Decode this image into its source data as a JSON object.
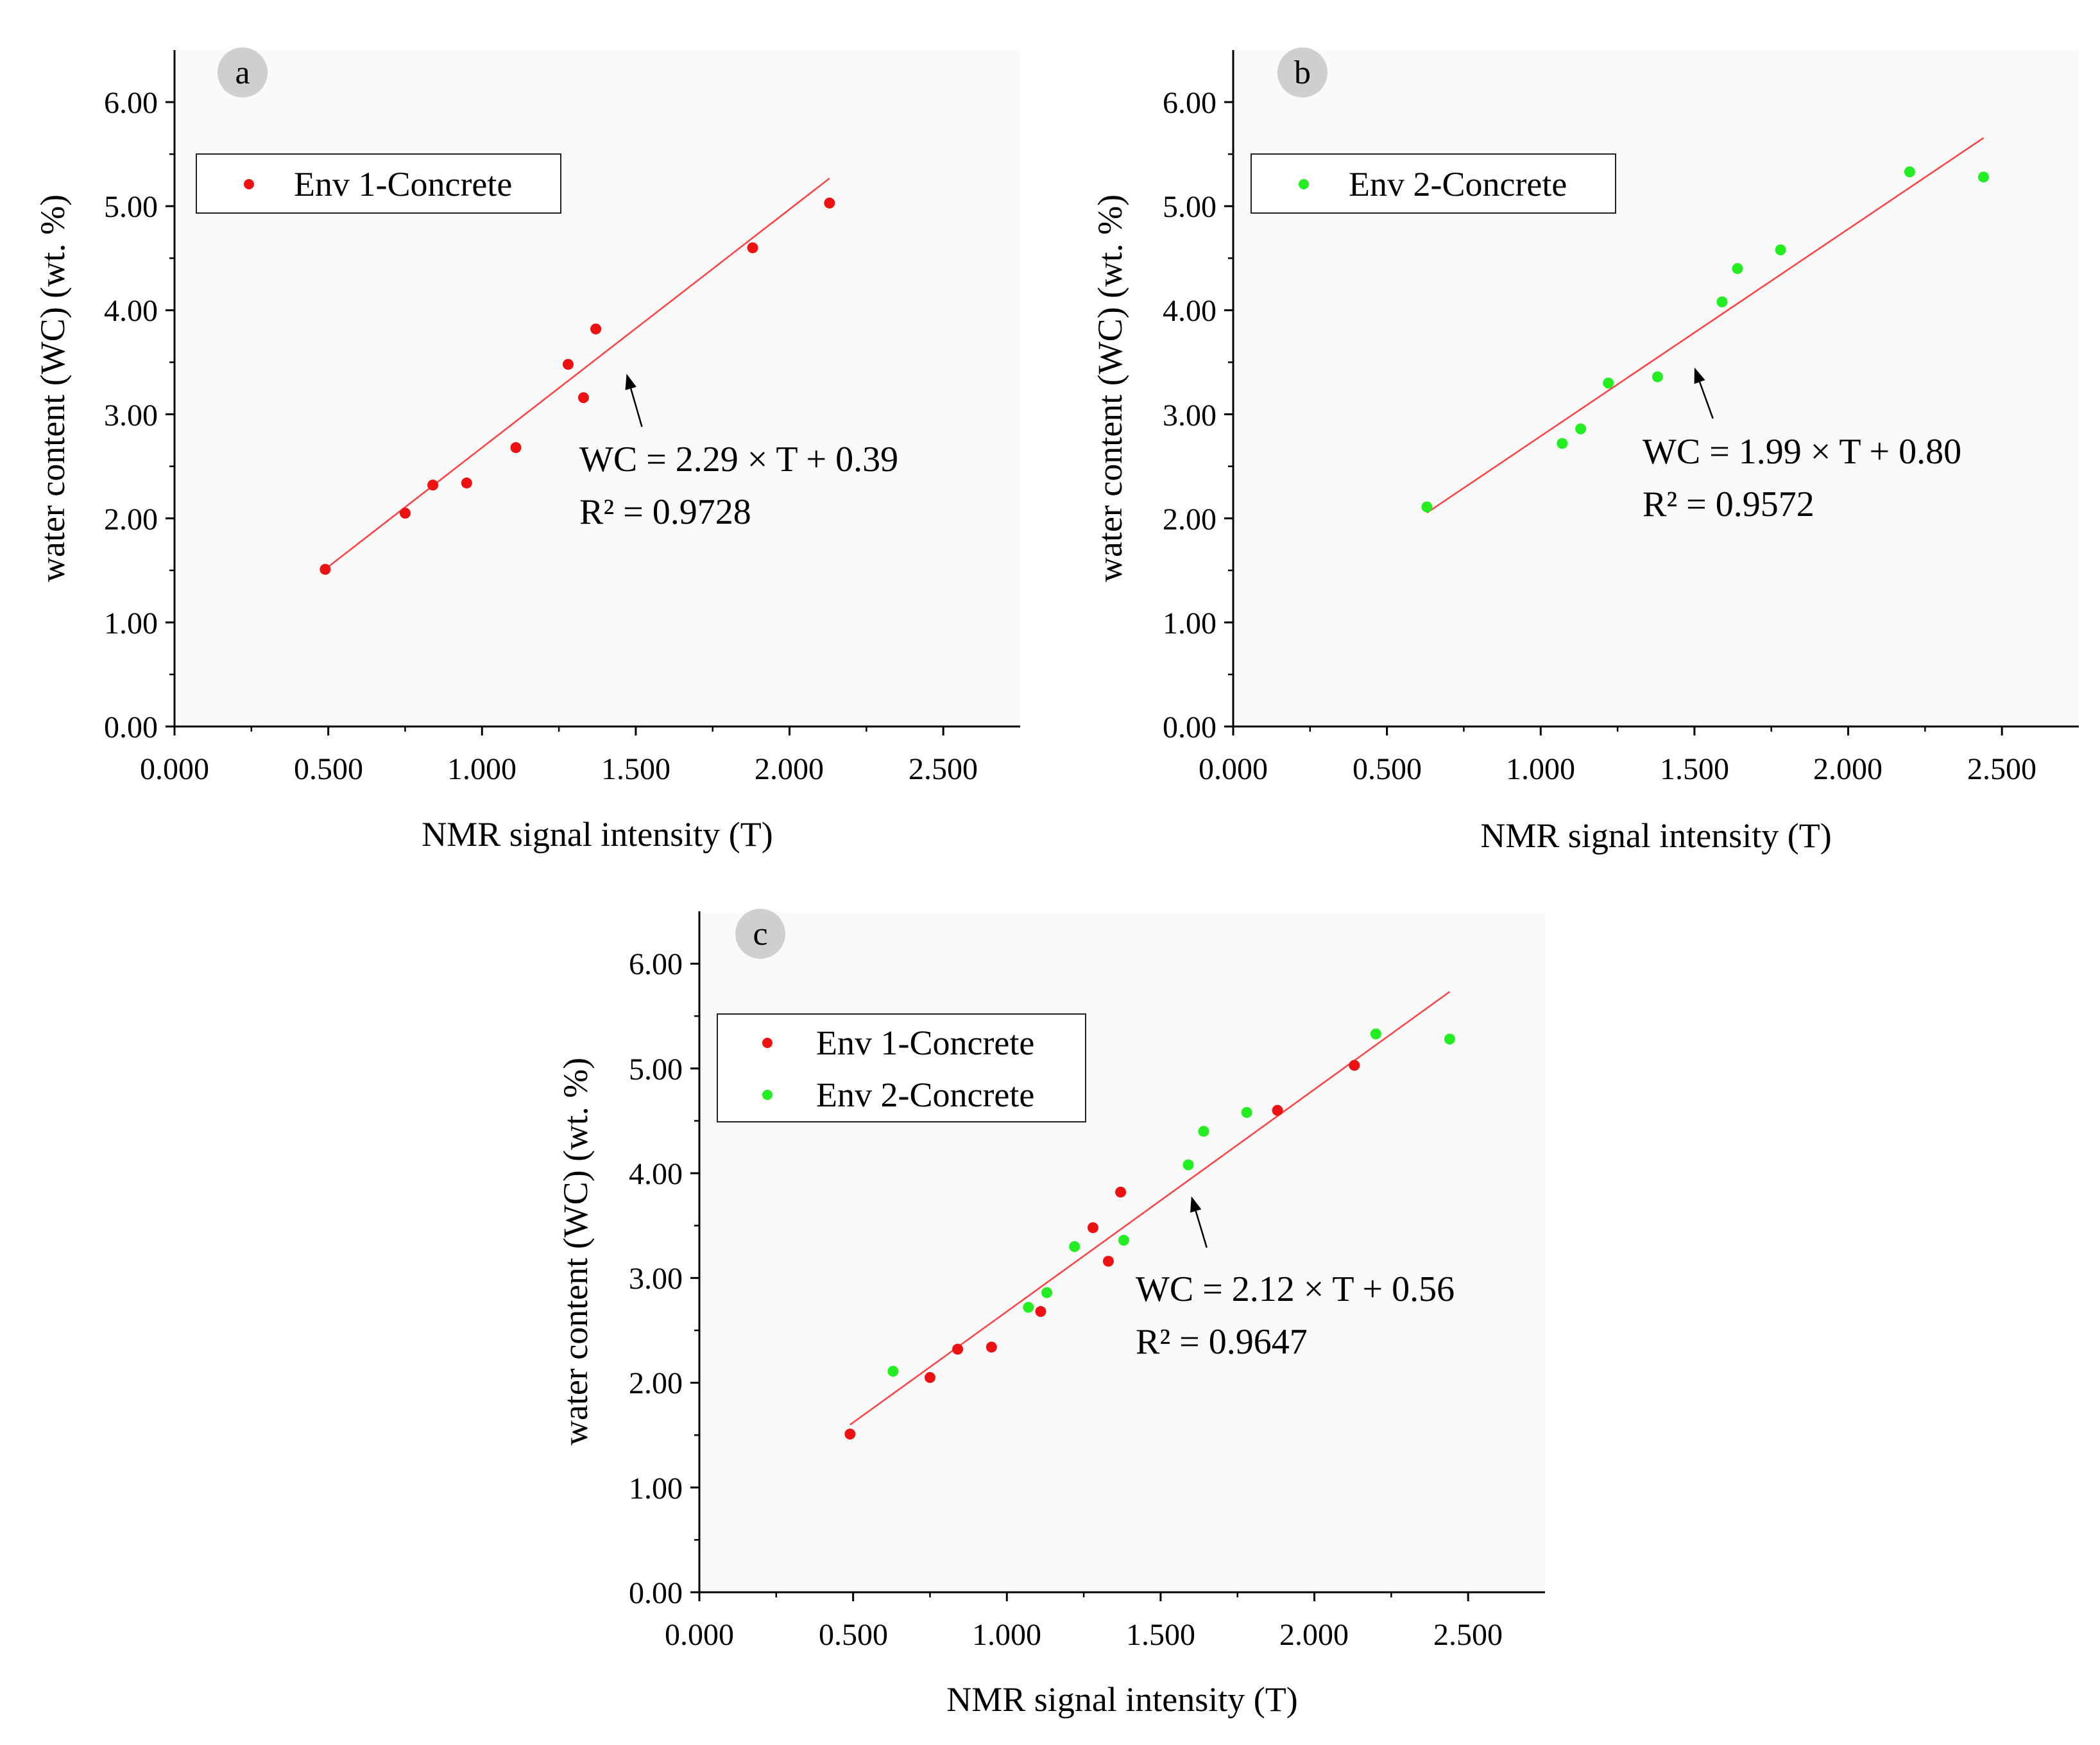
{
  "colors": {
    "axis": "#000000",
    "fit_line": "#ff4040",
    "env1": "#ee1111",
    "env2": "#22ee22",
    "panel_label_bg": "#cfcfcf",
    "plot_bg": "#fafafa"
  },
  "chart_data": [
    {
      "id": "a",
      "type": "scatter",
      "panel_label": "a",
      "xlabel": "NMR signal intensity (T)",
      "ylabel": "water content (WC) (wt. %)",
      "xlim": [
        0,
        2.75
      ],
      "ylim": [
        0,
        6.5
      ],
      "xticks": [
        0,
        0.5,
        1.0,
        1.5,
        2.0,
        2.5
      ],
      "xtick_labels": [
        "0.000",
        "0.500",
        "1.000",
        "1.500",
        "2.000",
        "2.500"
      ],
      "yticks": [
        0,
        1,
        2,
        3,
        4,
        5,
        6
      ],
      "ytick_labels": [
        "0.00",
        "1.00",
        "2.00",
        "3.00",
        "4.00",
        "5.00",
        "6.00"
      ],
      "legend_position": "top-left",
      "series": [
        {
          "name": "Env 1-Concrete",
          "color": "#ee1111",
          "x": [
            0.49,
            0.75,
            0.84,
            0.95,
            1.11,
            1.28,
            1.33,
            1.37,
            1.88,
            2.13
          ],
          "y": [
            1.51,
            2.05,
            2.32,
            2.34,
            2.68,
            3.48,
            3.16,
            3.82,
            4.6,
            5.03
          ]
        }
      ],
      "fit": {
        "slope": 2.29,
        "intercept": 0.39,
        "x_range": [
          0.49,
          2.13
        ],
        "equation": "WC = 2.29 × T + 0.39",
        "r2": "R² = 0.9728"
      },
      "annotation_arrow": {
        "from": [
          1.52,
          2.88
        ],
        "to": [
          1.47,
          3.39
        ]
      }
    },
    {
      "id": "b",
      "type": "scatter",
      "panel_label": "b",
      "xlabel": "NMR signal intensity (T)",
      "ylabel": "water content (WC) (wt. %)",
      "xlim": [
        0,
        2.75
      ],
      "ylim": [
        0,
        6.5
      ],
      "xticks": [
        0,
        0.5,
        1.0,
        1.5,
        2.0,
        2.5
      ],
      "xtick_labels": [
        "0.000",
        "0.500",
        "1.000",
        "1.500",
        "2.000",
        "2.500"
      ],
      "yticks": [
        0,
        1,
        2,
        3,
        4,
        5,
        6
      ],
      "ytick_labels": [
        "0.00",
        "1.00",
        "2.00",
        "3.00",
        "4.00",
        "5.00",
        "6.00"
      ],
      "legend_position": "top-left",
      "series": [
        {
          "name": "Env 2-Concrete",
          "color": "#22ee22",
          "x": [
            0.63,
            1.07,
            1.13,
            1.22,
            1.38,
            1.59,
            1.64,
            1.78,
            2.2,
            2.44
          ],
          "y": [
            2.11,
            2.72,
            2.86,
            3.3,
            3.36,
            4.08,
            4.4,
            4.58,
            5.33,
            5.28
          ]
        }
      ],
      "fit": {
        "slope": 1.99,
        "intercept": 0.8,
        "x_range": [
          0.63,
          2.44
        ],
        "equation": "WC = 1.99 × T + 0.80",
        "r2": "R² = 0.9572"
      },
      "annotation_arrow": {
        "from": [
          1.56,
          2.96
        ],
        "to": [
          1.5,
          3.45
        ]
      }
    },
    {
      "id": "c",
      "type": "scatter",
      "panel_label": "c",
      "xlabel": "NMR signal intensity (T)",
      "ylabel": "water content (WC) (wt. %)",
      "xlim": [
        0,
        2.75
      ],
      "ylim": [
        0,
        6.5
      ],
      "xticks": [
        0,
        0.5,
        1.0,
        1.5,
        2.0,
        2.5
      ],
      "xtick_labels": [
        "0.000",
        "0.500",
        "1.000",
        "1.500",
        "2.000",
        "2.500"
      ],
      "yticks": [
        0,
        1,
        2,
        3,
        4,
        5,
        6
      ],
      "ytick_labels": [
        "0.00",
        "1.00",
        "2.00",
        "3.00",
        "4.00",
        "5.00",
        "6.00"
      ],
      "legend_position": "top-left",
      "series": [
        {
          "name": "Env 1-Concrete",
          "color": "#ee1111",
          "x": [
            0.49,
            0.75,
            0.84,
            0.95,
            1.11,
            1.28,
            1.33,
            1.37,
            1.88,
            2.13
          ],
          "y": [
            1.51,
            2.05,
            2.32,
            2.34,
            2.68,
            3.48,
            3.16,
            3.82,
            4.6,
            5.03
          ]
        },
        {
          "name": "Env 2-Concrete",
          "color": "#22ee22",
          "x": [
            0.63,
            1.07,
            1.13,
            1.22,
            1.38,
            1.59,
            1.64,
            1.78,
            2.2,
            2.44
          ],
          "y": [
            2.11,
            2.72,
            2.86,
            3.3,
            3.36,
            4.08,
            4.4,
            4.58,
            5.33,
            5.28
          ]
        }
      ],
      "fit": {
        "slope": 2.12,
        "intercept": 0.56,
        "x_range": [
          0.49,
          2.44
        ],
        "equation": "WC = 2.12 × T + 0.56",
        "r2": "R² = 0.9647"
      },
      "annotation_arrow": {
        "from": [
          1.65,
          3.29
        ],
        "to": [
          1.6,
          3.78
        ]
      }
    }
  ]
}
